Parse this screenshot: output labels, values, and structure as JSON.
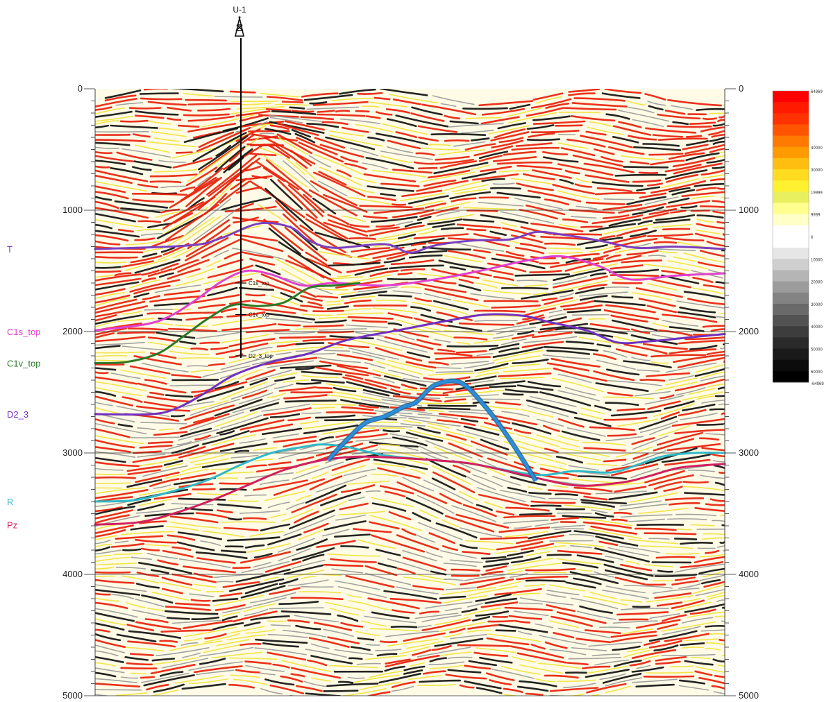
{
  "well": {
    "name": "U-1",
    "markers": [
      {
        "label": "C1s_top",
        "depth": 1600
      },
      {
        "label": "C1v_top",
        "depth": 1860
      },
      {
        "label": "D2_3_top",
        "depth": 2200
      }
    ]
  },
  "depth_axis": {
    "min": 0,
    "max": 5000,
    "ticks": [
      {
        "value": 0,
        "label": "0"
      },
      {
        "value": 1000,
        "label": "1000"
      },
      {
        "value": 2000,
        "label": "2000"
      },
      {
        "value": 3000,
        "label": "3000"
      },
      {
        "value": 4000,
        "label": "4000"
      },
      {
        "value": 5000,
        "label": "5000"
      }
    ]
  },
  "horizons": [
    {
      "name": "T",
      "color": "#7b3fbf",
      "label_depth": 1320,
      "points": [
        [
          0,
          1320
        ],
        [
          0.15,
          1290
        ],
        [
          0.2,
          1230
        ],
        [
          0.26,
          1110
        ],
        [
          0.31,
          1140
        ],
        [
          0.34,
          1250
        ],
        [
          0.38,
          1310
        ],
        [
          0.46,
          1280
        ],
        [
          0.5,
          1350
        ],
        [
          0.54,
          1290
        ],
        [
          0.6,
          1250
        ],
        [
          0.66,
          1240
        ],
        [
          0.7,
          1180
        ],
        [
          0.74,
          1200
        ],
        [
          0.8,
          1250
        ],
        [
          0.86,
          1310
        ],
        [
          0.92,
          1300
        ],
        [
          1,
          1320
        ]
      ]
    },
    {
      "name": "C1s_top",
      "color": "#e040d0",
      "label_depth": 2000,
      "points": [
        [
          0,
          1990
        ],
        [
          0.08,
          1940
        ],
        [
          0.12,
          1870
        ],
        [
          0.16,
          1740
        ],
        [
          0.2,
          1590
        ],
        [
          0.24,
          1500
        ],
        [
          0.28,
          1530
        ],
        [
          0.33,
          1620
        ],
        [
          0.38,
          1600
        ],
        [
          0.46,
          1620
        ],
        [
          0.54,
          1570
        ],
        [
          0.62,
          1490
        ],
        [
          0.68,
          1420
        ],
        [
          0.74,
          1380
        ],
        [
          0.8,
          1460
        ],
        [
          0.85,
          1570
        ],
        [
          0.92,
          1540
        ],
        [
          1,
          1520
        ]
      ]
    },
    {
      "name": "C1v_top",
      "color": "#2a7a2a",
      "label_depth": 2260,
      "points": [
        [
          0,
          2260
        ],
        [
          0.05,
          2250
        ],
        [
          0.1,
          2180
        ],
        [
          0.14,
          2040
        ],
        [
          0.18,
          1890
        ],
        [
          0.22,
          1780
        ],
        [
          0.26,
          1790
        ],
        [
          0.3,
          1760
        ],
        [
          0.34,
          1640
        ],
        [
          0.38,
          1620
        ],
        [
          0.42,
          1600
        ]
      ]
    },
    {
      "name": "D2_3",
      "color": "#7030c0",
      "label_depth": 2680,
      "points": [
        [
          0,
          2680
        ],
        [
          0.09,
          2680
        ],
        [
          0.13,
          2630
        ],
        [
          0.17,
          2520
        ],
        [
          0.22,
          2360
        ],
        [
          0.28,
          2250
        ],
        [
          0.34,
          2180
        ],
        [
          0.4,
          2070
        ],
        [
          0.48,
          1990
        ],
        [
          0.56,
          1910
        ],
        [
          0.62,
          1860
        ],
        [
          0.68,
          1870
        ],
        [
          0.72,
          1920
        ],
        [
          0.78,
          1990
        ],
        [
          0.83,
          2090
        ],
        [
          0.88,
          2080
        ],
        [
          0.94,
          2050
        ],
        [
          1,
          2020
        ]
      ]
    },
    {
      "name": "R",
      "color": "#30b8c8",
      "label_depth": 3400,
      "points": [
        [
          0,
          3400
        ],
        [
          0.06,
          3390
        ],
        [
          0.12,
          3320
        ],
        [
          0.18,
          3220
        ],
        [
          0.23,
          3100
        ],
        [
          0.28,
          3000
        ],
        [
          0.33,
          2950
        ],
        [
          0.36,
          2930
        ],
        [
          0.4,
          2950
        ],
        [
          0.46,
          3020
        ],
        [
          0.54,
          3060
        ],
        [
          0.6,
          3090
        ],
        [
          0.7,
          3180
        ],
        [
          0.76,
          3150
        ],
        [
          0.82,
          3160
        ],
        [
          0.86,
          3100
        ],
        [
          0.9,
          3030
        ],
        [
          0.95,
          3000
        ],
        [
          1,
          3000
        ]
      ]
    },
    {
      "name": "Pz",
      "color": "#d02060",
      "label_depth": 3590,
      "points": [
        [
          0,
          3590
        ],
        [
          0.07,
          3570
        ],
        [
          0.13,
          3490
        ],
        [
          0.19,
          3380
        ],
        [
          0.24,
          3270
        ],
        [
          0.3,
          3140
        ],
        [
          0.36,
          3060
        ],
        [
          0.42,
          3030
        ],
        [
          0.48,
          3040
        ],
        [
          0.54,
          3060
        ],
        [
          0.6,
          3090
        ],
        [
          0.68,
          3180
        ],
        [
          0.74,
          3250
        ],
        [
          0.78,
          3270
        ],
        [
          0.84,
          3240
        ],
        [
          0.88,
          3190
        ],
        [
          0.93,
          3120
        ],
        [
          1,
          3090
        ]
      ]
    }
  ],
  "intrusion": {
    "color": "#2a8fd8",
    "points": [
      [
        0.37,
        3060
      ],
      [
        0.4,
        2890
      ],
      [
        0.43,
        2750
      ],
      [
        0.46,
        2700
      ],
      [
        0.49,
        2620
      ],
      [
        0.51,
        2580
      ],
      [
        0.54,
        2440
      ],
      [
        0.58,
        2420
      ],
      [
        0.62,
        2620
      ],
      [
        0.66,
        2900
      ],
      [
        0.7,
        3230
      ]
    ]
  },
  "colorbar": {
    "stops": [
      {
        "color": "#ff0000",
        "label": "64969"
      },
      {
        "color": "#ff1a00",
        "label": ""
      },
      {
        "color": "#ff3300",
        "label": ""
      },
      {
        "color": "#ff5500",
        "label": ""
      },
      {
        "color": "#ff7a00",
        "label": ""
      },
      {
        "color": "#ff9a00",
        "label": "40000"
      },
      {
        "color": "#ffbe10",
        "label": ""
      },
      {
        "color": "#ffdc20",
        "label": "30000"
      },
      {
        "color": "#fff030",
        "label": ""
      },
      {
        "color": "#e8f060",
        "label": "19999"
      },
      {
        "color": "#ffff90",
        "label": ""
      },
      {
        "color": "#ffffc8",
        "label": "9999"
      },
      {
        "color": "#ffffff",
        "label": ""
      },
      {
        "color": "#ffffff",
        "label": "0"
      },
      {
        "color": "#e6e6e6",
        "label": ""
      },
      {
        "color": "#cfcfcf",
        "label": "10000"
      },
      {
        "color": "#b5b5b5",
        "label": ""
      },
      {
        "color": "#9c9c9c",
        "label": "20000"
      },
      {
        "color": "#838383",
        "label": ""
      },
      {
        "color": "#6a6a6a",
        "label": "30000"
      },
      {
        "color": "#525252",
        "label": ""
      },
      {
        "color": "#3d3d3d",
        "label": "40000"
      },
      {
        "color": "#2a2a2a",
        "label": ""
      },
      {
        "color": "#1a1a1a",
        "label": "50000"
      },
      {
        "color": "#0c0c0c",
        "label": ""
      },
      {
        "color": "#000000",
        "label": "60000"
      },
      {
        "color": "#000000",
        "label": "-64969"
      }
    ]
  },
  "colors": {
    "seismic_red": "#e8200c",
    "seismic_yellow": "#f2e23a",
    "seismic_black": "#111111",
    "seismic_gray": "#9a9a9a"
  }
}
